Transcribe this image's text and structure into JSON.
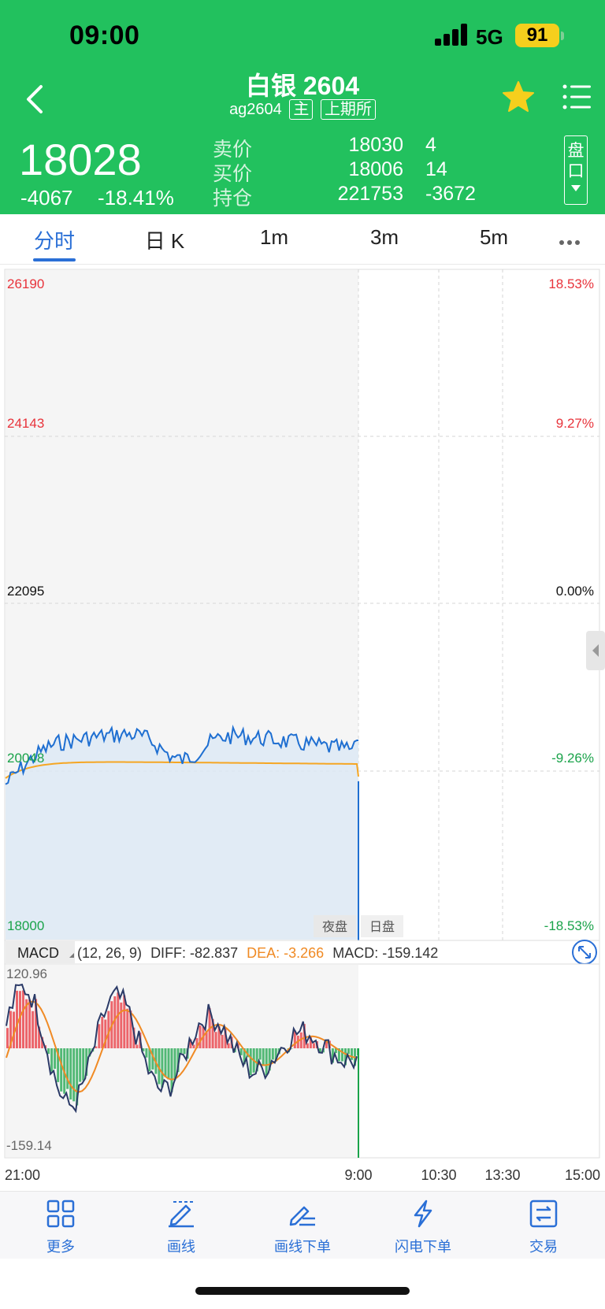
{
  "status_bar": {
    "time": "09:00",
    "network": "5G",
    "battery": "91"
  },
  "header": {
    "title": "白银 2604",
    "code": "ag2604",
    "main_tag": "主",
    "exchange_tag": "上期所",
    "price": "18028",
    "change": "-4067",
    "change_pct": "-18.41%",
    "pankou_label_1": "盘",
    "pankou_label_2": "口"
  },
  "quote": [
    {
      "label": "卖价",
      "value": "18030",
      "extra": "4"
    },
    {
      "label": "买价",
      "value": "18006",
      "extra": "14"
    },
    {
      "label": "持仓",
      "value": "221753",
      "extra": "-3672"
    }
  ],
  "tabs": [
    "分时",
    "日 K",
    "1m",
    "3m",
    "5m"
  ],
  "chart": {
    "price_axis_left": [
      "26190",
      "24143",
      "22095",
      "20048",
      "18000"
    ],
    "price_axis_right": [
      "18.53%",
      "9.27%",
      "0.00%",
      "-9.26%",
      "-18.53%"
    ],
    "session_tags": [
      "夜盘",
      "日盘"
    ],
    "macd_label": "MACD",
    "macd_params": "(12, 26, 9)",
    "diff_text": "DIFF: -82.837",
    "dea_text": "DEA: -3.266",
    "macd_text": "MACD: -159.142",
    "macd_top": "120.96",
    "macd_bottom": "-159.14",
    "time_axis": [
      "21:00",
      "9:00",
      "10:30",
      "13:30",
      "15:00"
    ],
    "colors": {
      "up": "#e8333b",
      "down": "#1aa34a",
      "price_line": "#1f6fd1",
      "avg_line": "#f5a623",
      "diff": "#2b3a67",
      "dea": "#f08a24"
    }
  },
  "bottom_nav": [
    {
      "label": "更多",
      "icon": "grid-icon"
    },
    {
      "label": "画线",
      "icon": "draw-line-icon"
    },
    {
      "label": "画线下单",
      "icon": "draw-order-icon"
    },
    {
      "label": "闪电下单",
      "icon": "lightning-icon"
    },
    {
      "label": "交易",
      "icon": "trade-icon"
    }
  ]
}
